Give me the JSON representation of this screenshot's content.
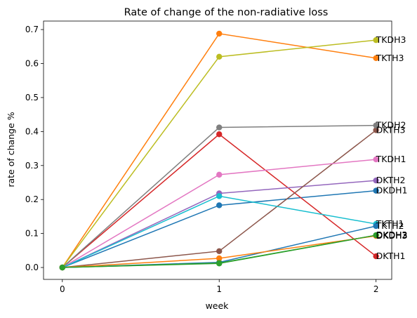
{
  "chart_data": {
    "type": "line",
    "title": "Rate of change of the non-radiative loss",
    "xlabel": "week",
    "ylabel": "rate of change %",
    "x": [
      0,
      1,
      2
    ],
    "x_ticks": [
      "0",
      "1",
      "2"
    ],
    "y_ticks": [
      "0.0",
      "0.1",
      "0.2",
      "0.3",
      "0.4",
      "0.5",
      "0.6",
      "0.7"
    ],
    "xlim": [
      -0.12,
      2.1
    ],
    "ylim": [
      -0.035,
      0.725
    ],
    "grid": false,
    "legend": "none",
    "series": [
      {
        "name": "DKDH1",
        "color": "#1f77b4",
        "values": [
          0.0,
          0.183,
          0.226
        ]
      },
      {
        "name": "TKTH3",
        "color": "#ff7f0e",
        "values": [
          0.0,
          0.688,
          0.616
        ]
      },
      {
        "name": "DKDH2",
        "color": "#2ca02c",
        "values": [
          0.0,
          0.012,
          0.095
        ]
      },
      {
        "name": "DKTH1",
        "color": "#d62728",
        "values": [
          0.0,
          0.392,
          0.033
        ]
      },
      {
        "name": "DKTH2",
        "color": "#9467bd",
        "values": [
          0.0,
          0.218,
          0.256
        ]
      },
      {
        "name": "DKTH3",
        "color": "#8c564b",
        "values": [
          0.0,
          0.048,
          0.404
        ]
      },
      {
        "name": "TKDH1",
        "color": "#e377c2",
        "values": [
          0.0,
          0.273,
          0.318
        ]
      },
      {
        "name": "TKDH2",
        "color": "#7f7f7f",
        "values": [
          0.0,
          0.412,
          0.418
        ]
      },
      {
        "name": "TKDH3",
        "color": "#bcbd22",
        "values": [
          0.0,
          0.62,
          0.669
        ]
      },
      {
        "name": "TKTH1",
        "color": "#17becf",
        "values": [
          0.0,
          0.21,
          0.128
        ]
      },
      {
        "name": "TKTH2",
        "color": "#1f77b4",
        "values": [
          0.0,
          0.015,
          0.122
        ]
      },
      {
        "name": "DKDH3",
        "color": "#ff7f0e",
        "values": [
          0.0,
          0.027,
          0.093
        ]
      },
      {
        "name": "DKDH3",
        "color": "#2ca02c",
        "values": [
          0.0,
          0.013,
          0.095
        ]
      }
    ]
  }
}
